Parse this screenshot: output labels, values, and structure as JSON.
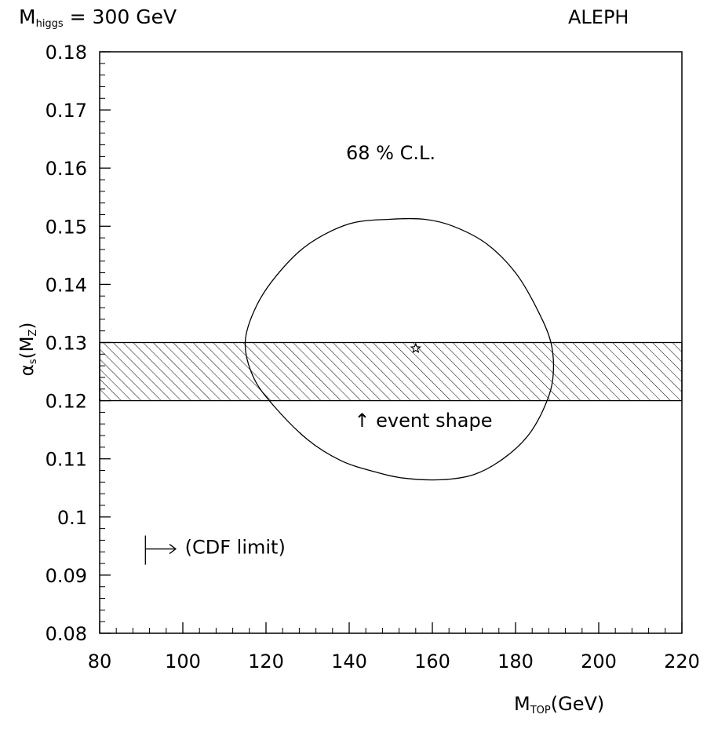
{
  "chart_data": {
    "type": "contour",
    "title_left": "M",
    "title_left_sub": "higgs",
    "title_left_rest": " = 300 GeV",
    "title_right": "ALEPH",
    "xlabel": "M",
    "xlabel_sub": "TOP",
    "xlabel_rest": "(GeV)",
    "ylabel_main": "α",
    "ylabel_sub": "s",
    "ylabel_rest": "(M",
    "ylabel_sub2": "Z",
    "ylabel_close": ")",
    "xlim": [
      80,
      220
    ],
    "ylim": [
      0.08,
      0.18
    ],
    "x_ticks": [
      80,
      100,
      120,
      140,
      160,
      180,
      200,
      220
    ],
    "x_tick_labels": [
      "80",
      "100",
      "120",
      "140",
      "160",
      "180",
      "200",
      "220"
    ],
    "y_ticks": [
      0.08,
      0.09,
      0.1,
      0.11,
      0.12,
      0.13,
      0.14,
      0.15,
      0.16,
      0.17,
      0.18
    ],
    "y_tick_labels": [
      "0.08",
      "0.09",
      "0.1",
      "0.11",
      "0.12",
      "0.13",
      "0.14",
      "0.15",
      "0.16",
      "0.17",
      "0.18"
    ],
    "contour": {
      "name": "68 % C.L.",
      "points": [
        [
          150.0,
          0.1512
        ],
        [
          140.0,
          0.1504
        ],
        [
          130.0,
          0.1468
        ],
        [
          122.5,
          0.1415
        ],
        [
          117.5,
          0.136
        ],
        [
          115.0,
          0.13
        ],
        [
          117.0,
          0.124
        ],
        [
          122.0,
          0.119
        ],
        [
          130.0,
          0.1133
        ],
        [
          138.0,
          0.1097
        ],
        [
          146.0,
          0.1078
        ],
        [
          153.0,
          0.1067
        ],
        [
          162.0,
          0.1064
        ],
        [
          170.0,
          0.1073
        ],
        [
          177.0,
          0.11
        ],
        [
          183.0,
          0.114
        ],
        [
          187.0,
          0.119
        ],
        [
          189.0,
          0.124
        ],
        [
          188.5,
          0.13
        ],
        [
          185.0,
          0.136
        ],
        [
          180.0,
          0.142
        ],
        [
          173.0,
          0.147
        ],
        [
          165.0,
          0.15
        ],
        [
          158.0,
          0.1512
        ],
        [
          150.0,
          0.1512
        ]
      ]
    },
    "best_fit": {
      "x": 156,
      "y": 0.129,
      "marker": "star"
    },
    "band": {
      "name": "event shape",
      "ymin": 0.12,
      "ymax": 0.13,
      "fill": "hatched"
    },
    "cdf_limit_x": 91,
    "annotations": {
      "cl": "68 % C.L.",
      "event_shape": "↑ event shape",
      "cdf": "(CDF limit)"
    }
  }
}
